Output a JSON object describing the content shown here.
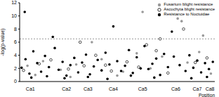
{
  "chart_data": {
    "type": "scatter",
    "x_label": "Position",
    "y_label": "-log(p-value)",
    "xlim": [
      0,
      100
    ],
    "xticks": [
      {
        "value": 5.5,
        "label": "Ca1"
      },
      {
        "value": 24,
        "label": "Ca2"
      },
      {
        "value": 35,
        "label": "Ca3"
      },
      {
        "value": 48,
        "label": "Ca4"
      },
      {
        "value": 63,
        "label": "Ca5"
      },
      {
        "value": 80,
        "label": "Ca6"
      },
      {
        "value": 91,
        "label": "Ca7"
      },
      {
        "value": 97.5,
        "label": "Ca8"
      }
    ],
    "ylim": [
      0,
      12
    ],
    "yticks": [
      0,
      2,
      4,
      6,
      8,
      10,
      12
    ],
    "threshold": 6.5,
    "grid": false,
    "legend": "top-right",
    "series": [
      {
        "name": "Fusarium blight resistance",
        "color": "#999999",
        "marker": "circle",
        "x": [
          63,
          81,
          83,
          94,
          37,
          4,
          12,
          21,
          29,
          42,
          53,
          60,
          67,
          73,
          86,
          92,
          98,
          8,
          26,
          50
        ],
        "values": [
          10.6,
          9.6,
          9.2,
          7.0,
          6.0,
          2.4,
          3.1,
          1.8,
          2.6,
          3.4,
          1.5,
          4.3,
          2.0,
          3.8,
          2.9,
          4.5,
          1.2,
          1.0,
          0.7,
          0.9
        ]
      },
      {
        "name": "Ascochyta blight resistance",
        "color": "#000000",
        "marker": "open_circle",
        "x": [
          84,
          31,
          72,
          10,
          16,
          25,
          33,
          39,
          47,
          55,
          61,
          70,
          76,
          90,
          96,
          2,
          44,
          65
        ],
        "values": [
          8.0,
          6.0,
          6.5,
          2.7,
          3.3,
          1.9,
          2.4,
          4.0,
          1.6,
          3.0,
          2.2,
          4.7,
          1.3,
          2.9,
          3.6,
          1.7,
          2.5,
          5.6
        ]
      },
      {
        "name": "Resistance to Noctuidae",
        "color": "#000000",
        "marker": "circle",
        "x": [
          2.6,
          17,
          48,
          78,
          1,
          3,
          5,
          7,
          9,
          11,
          13,
          15,
          18,
          20,
          22,
          24,
          26,
          28,
          30,
          32,
          34,
          36,
          38,
          40,
          42,
          44,
          46,
          50,
          52,
          54,
          56,
          58,
          60,
          62,
          64,
          66,
          68,
          70,
          72,
          74,
          76,
          79,
          82,
          85,
          87,
          89,
          91,
          93,
          95,
          97,
          99,
          6,
          14,
          23,
          35,
          45,
          57,
          69,
          88,
          96
        ],
        "values": [
          10.6,
          6.8,
          8.4,
          7.6,
          2.1,
          3.4,
          1.2,
          4.6,
          2.8,
          1.5,
          3.9,
          2.2,
          5.1,
          1.8,
          3.0,
          0.9,
          2.5,
          3.6,
          1.4,
          2.9,
          4.1,
          1.1,
          2.3,
          3.3,
          1.7,
          4.4,
          2.6,
          3.1,
          1.6,
          2.4,
          4.8,
          1.3,
          3.7,
          2.0,
          5.4,
          1.9,
          2.7,
          3.5,
          1.0,
          4.2,
          2.2,
          3.8,
          2.5,
          1.6,
          4.0,
          2.1,
          3.2,
          1.4,
          2.8,
          1.9,
          3.0,
          0.6,
          0.8,
          0.5,
          0.7,
          0.4,
          0.9,
          0.6,
          0.5,
          0.7
        ]
      }
    ]
  }
}
